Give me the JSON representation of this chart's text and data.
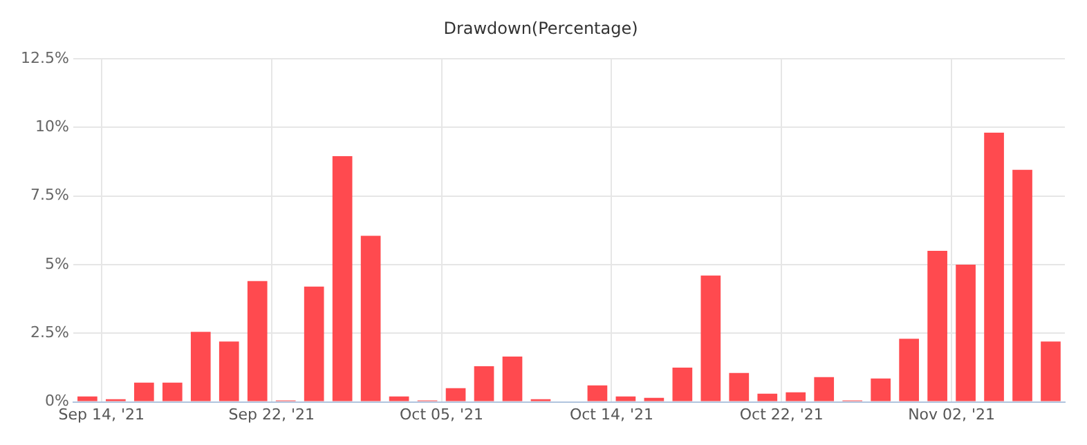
{
  "chart_data": {
    "type": "bar",
    "title": "Drawdown(Percentage)",
    "categories": [
      null,
      "Sep 14, '21",
      null,
      null,
      null,
      null,
      null,
      "Sep 22, '21",
      null,
      null,
      null,
      null,
      null,
      "Oct 05, '21",
      null,
      null,
      null,
      null,
      null,
      "Oct 14, '21",
      null,
      null,
      null,
      null,
      null,
      "Oct 22, '21",
      null,
      null,
      null,
      null,
      null,
      "Nov 02, '21",
      null,
      null,
      null
    ],
    "values": [
      0.2,
      0.1,
      0.7,
      0.7,
      2.55,
      2.2,
      4.4,
      0.05,
      4.2,
      8.95,
      6.05,
      0.2,
      0.05,
      0.5,
      1.3,
      1.65,
      0.1,
      0,
      0.6,
      0.2,
      0.15,
      1.25,
      4.6,
      1.05,
      0.3,
      0.35,
      0.9,
      0.05,
      0.85,
      2.3,
      5.5,
      5.0,
      9.8,
      8.45,
      2.2
    ],
    "color": "#ff4a4f",
    "ylim": [
      0,
      12.5
    ],
    "yticks": [
      {
        "value": 0,
        "label": "0%"
      },
      {
        "value": 2.5,
        "label": "2.5%"
      },
      {
        "value": 5,
        "label": "5%"
      },
      {
        "value": 7.5,
        "label": "7.5%"
      },
      {
        "value": 10,
        "label": "10%"
      },
      {
        "value": 12.5,
        "label": "12.5%"
      }
    ],
    "grid": true
  }
}
